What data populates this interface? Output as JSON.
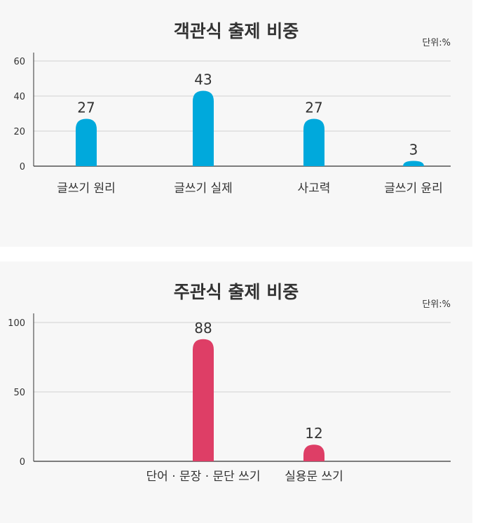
{
  "chart_data": [
    {
      "type": "bar",
      "title": "객관식 출제 비중",
      "unit_label": "단위:%",
      "categories": [
        "글쓰기 원리",
        "글쓰기 실제",
        "사고력",
        "글쓰기 윤리"
      ],
      "values": [
        27,
        43,
        27,
        3
      ],
      "yticks": [
        0,
        20,
        40,
        60
      ],
      "ylim": [
        0,
        60
      ],
      "grid": true,
      "color": "#00a9dc"
    },
    {
      "type": "bar",
      "title": "주관식 출제 비중",
      "unit_label": "단위:%",
      "categories": [
        "단어 · 문장 · 문단 쓰기",
        "실용문 쓰기"
      ],
      "values": [
        88,
        12
      ],
      "yticks": [
        0,
        50,
        100
      ],
      "ylim": [
        0,
        100
      ],
      "grid": true,
      "color": "#de3e66"
    }
  ]
}
